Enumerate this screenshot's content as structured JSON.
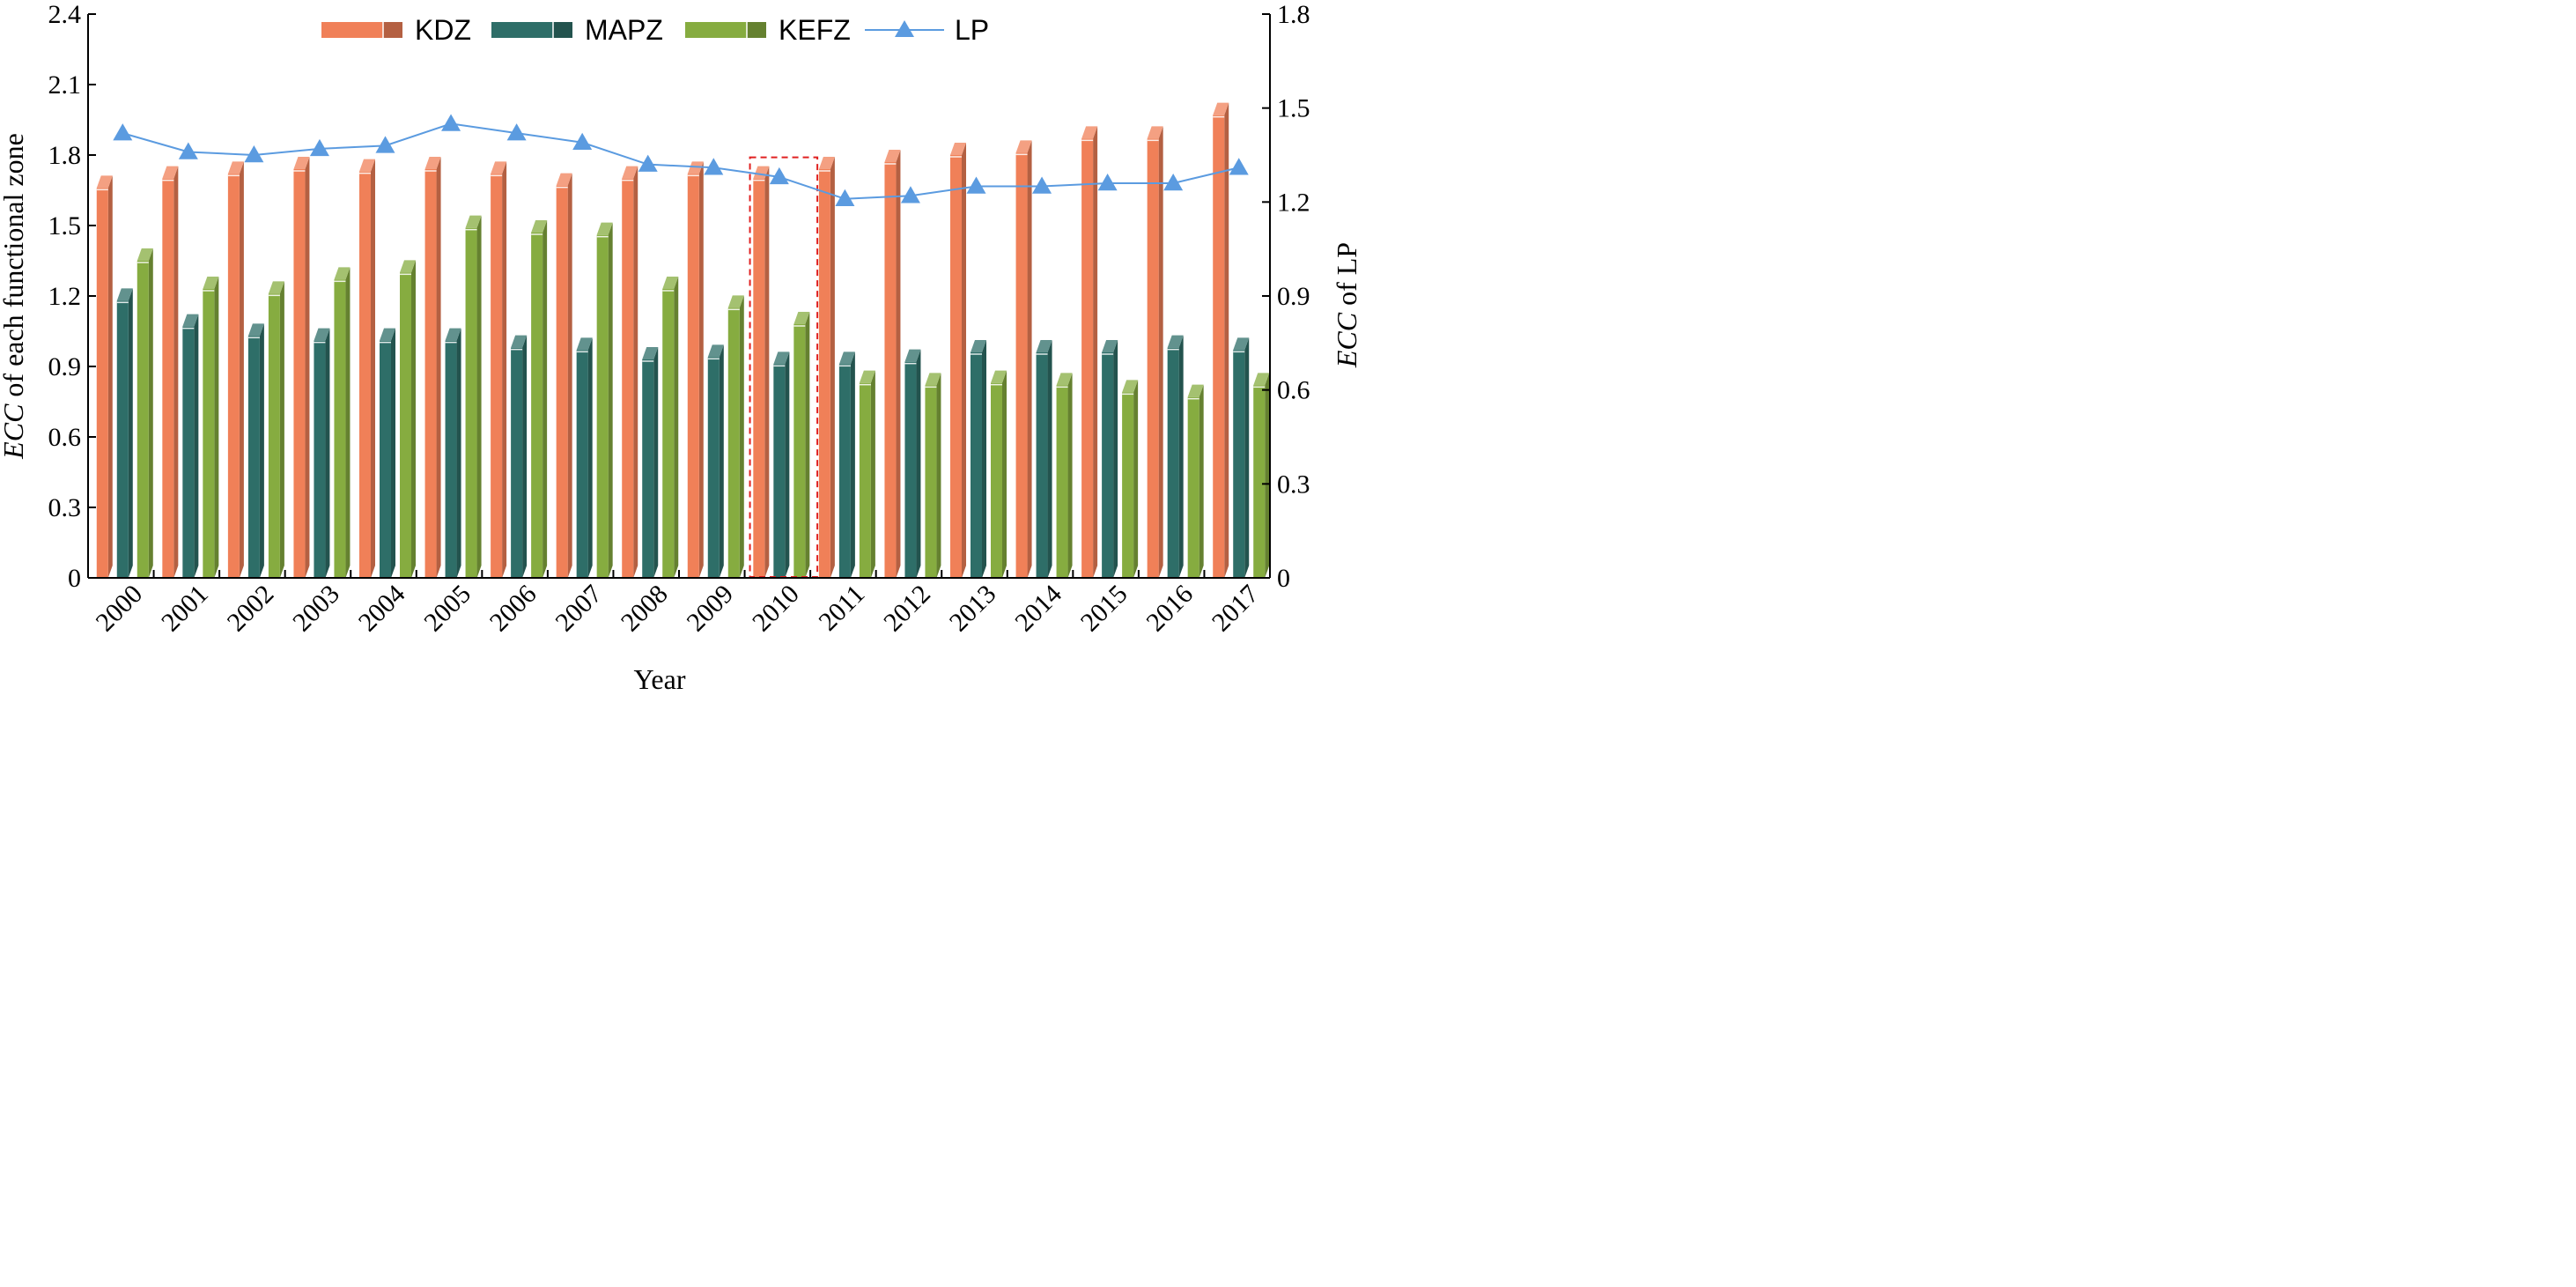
{
  "chart_data": {
    "type": "bar",
    "categories": [
      "2000",
      "2001",
      "2002",
      "2003",
      "2004",
      "2005",
      "2006",
      "2007",
      "2008",
      "2009",
      "2010",
      "2011",
      "2012",
      "2013",
      "2014",
      "2015",
      "2016",
      "2017"
    ],
    "series": [
      {
        "name": "KDZ",
        "type": "bar",
        "axis": "left",
        "color": "#f08058",
        "values": [
          1.66,
          1.7,
          1.72,
          1.74,
          1.73,
          1.74,
          1.72,
          1.67,
          1.7,
          1.72,
          1.7,
          1.74,
          1.77,
          1.8,
          1.81,
          1.87,
          1.87,
          1.97
        ]
      },
      {
        "name": "MAPZ",
        "type": "bar",
        "axis": "left",
        "color": "#2e6e68",
        "values": [
          1.18,
          1.07,
          1.03,
          1.01,
          1.01,
          1.01,
          0.98,
          0.97,
          0.93,
          0.94,
          0.91,
          0.91,
          0.92,
          0.96,
          0.96,
          0.96,
          0.98,
          0.97
        ]
      },
      {
        "name": "KEFZ",
        "type": "bar",
        "axis": "left",
        "color": "#86ac40",
        "values": [
          1.35,
          1.23,
          1.21,
          1.27,
          1.3,
          1.49,
          1.47,
          1.46,
          1.23,
          1.15,
          1.08,
          0.83,
          0.82,
          0.83,
          0.82,
          0.79,
          0.77,
          0.82
        ]
      },
      {
        "name": "LP",
        "type": "line",
        "axis": "right",
        "color": "#5b9be0",
        "values": [
          1.42,
          1.36,
          1.35,
          1.37,
          1.38,
          1.45,
          1.42,
          1.39,
          1.32,
          1.31,
          1.28,
          1.21,
          1.22,
          1.25,
          1.25,
          1.26,
          1.26,
          1.31
        ]
      }
    ],
    "xlabel": "Year",
    "ylabel_left_italic": "ECC",
    "ylabel_left_rest": " of each functional zone",
    "ylabel_right_italic": "ECC",
    "ylabel_right_rest": " of LP",
    "ylim_left": [
      0,
      2.4
    ],
    "yticks_left": [
      "0",
      "0.3",
      "0.6",
      "0.9",
      "1.2",
      "1.5",
      "1.8",
      "2.1",
      "2.4"
    ],
    "ylim_right": [
      0,
      1.8
    ],
    "yticks_right": [
      "0",
      "0.3",
      "0.6",
      "0.9",
      "1.2",
      "1.5",
      "1.8"
    ],
    "highlight_category": "2010",
    "grid": false,
    "legend_position": "top"
  }
}
